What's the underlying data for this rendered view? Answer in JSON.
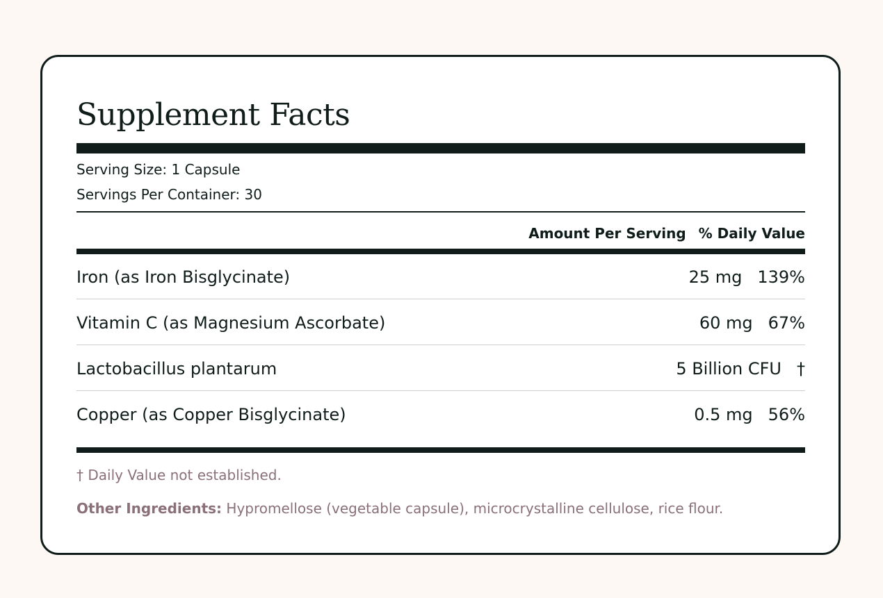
{
  "title": "Supplement Facts",
  "serving": {
    "size": "Serving Size: 1 Capsule",
    "per_container": "Servings Per Container: 30"
  },
  "columns": {
    "amount": "Amount Per Serving",
    "daily_value": "% Daily Value"
  },
  "nutrients": [
    {
      "name": "Iron (as Iron Bisglycinate)",
      "amount": "25 mg",
      "dv": "139%"
    },
    {
      "name": "Vitamin C (as Magnesium Ascorbate)",
      "amount": "60 mg",
      "dv": "67%"
    },
    {
      "name": "Lactobacillus plantarum",
      "amount": "5 Billion CFU",
      "dv": "†"
    },
    {
      "name": "Copper (as Copper Bisglycinate)",
      "amount": "0.5 mg",
      "dv": "56%"
    }
  ],
  "footnote": "† Daily Value not established.",
  "other_ingredients": {
    "label": "Other Ingredients:",
    "text": " Hypromellose (vegetable capsule), microcrystalline cellulose, rice flour."
  },
  "colors": {
    "background": "#fdf8f4",
    "ink": "#0f1c1a",
    "muted": "#8a7078"
  }
}
